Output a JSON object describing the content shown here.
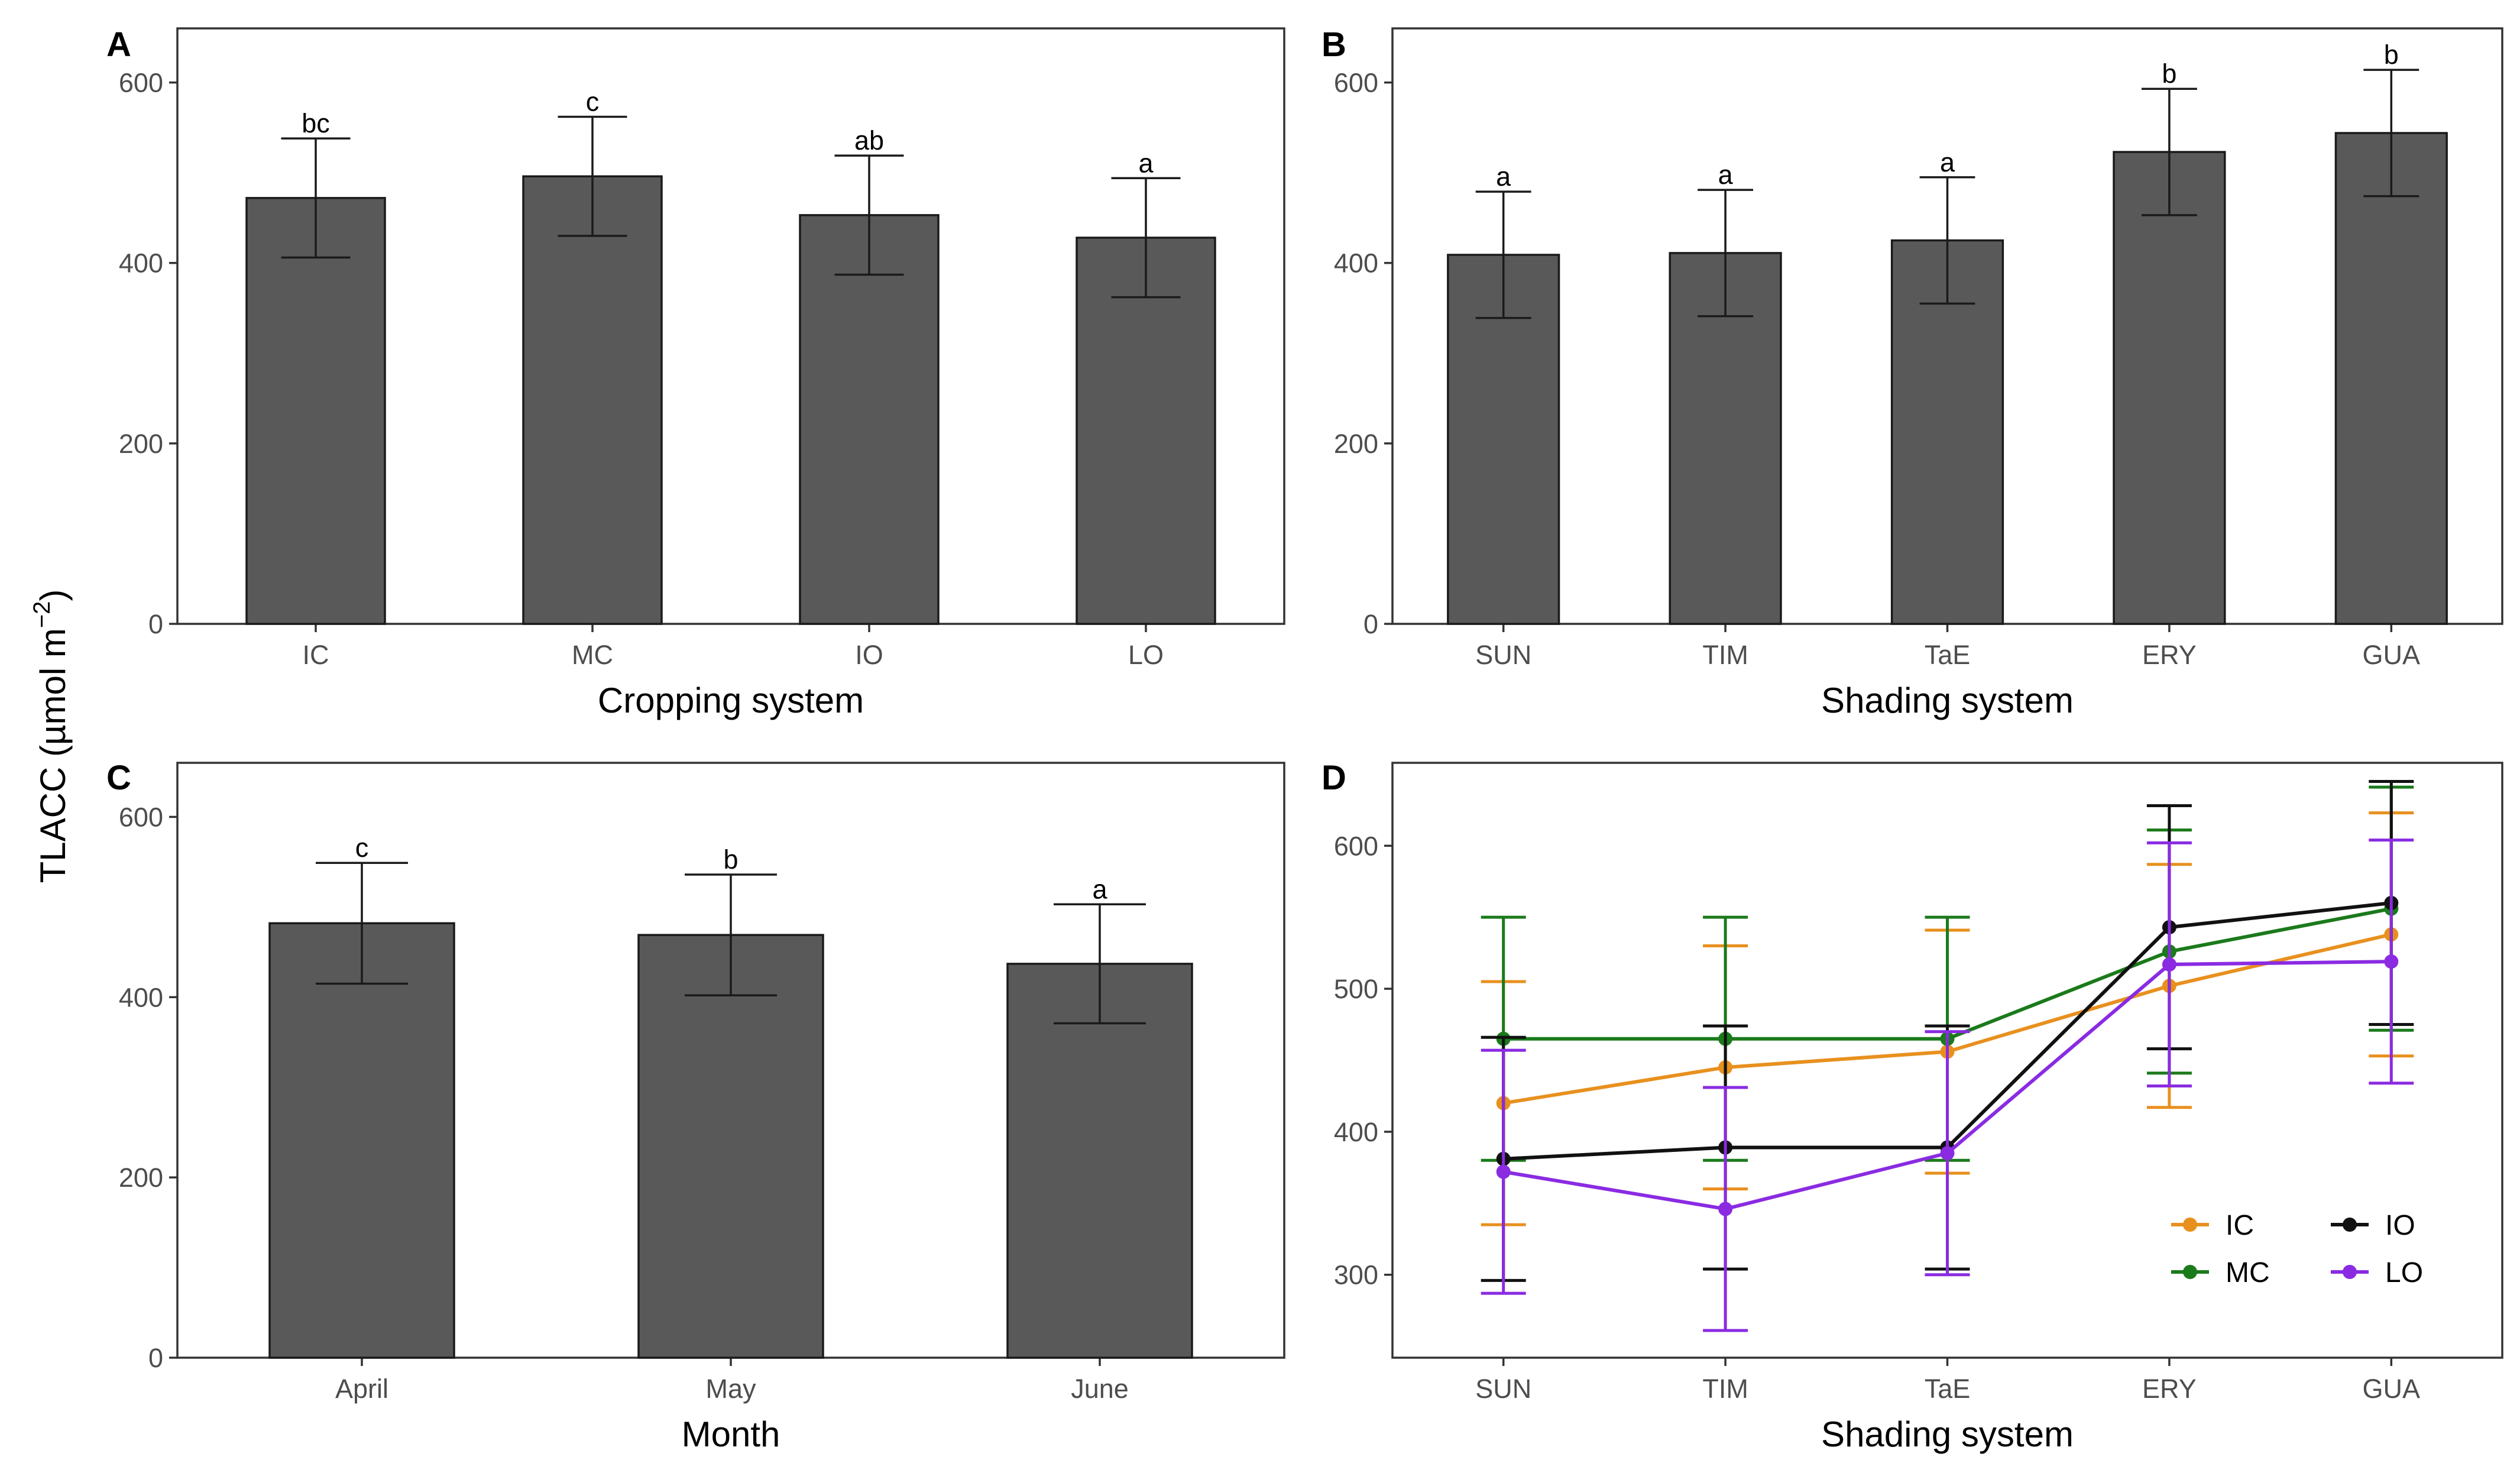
{
  "y_axis_title": "TLACC (µmol m",
  "y_axis_title_sup": "−2",
  "y_axis_title_end": ")",
  "chart_data": [
    {
      "panel": "A",
      "type": "bar",
      "xlabel": "Cropping system",
      "ylabel": "TLACC (µmol m−2)",
      "categories": [
        "IC",
        "MC",
        "IO",
        "LO"
      ],
      "values": [
        472,
        496,
        453,
        428
      ],
      "errors": [
        66,
        66,
        66,
        66
      ],
      "letters": [
        "bc",
        "c",
        "ab",
        "a"
      ],
      "ylim": [
        0,
        660
      ],
      "yticks": [
        0,
        200,
        400,
        600
      ]
    },
    {
      "panel": "B",
      "type": "bar",
      "xlabel": "Shading system",
      "ylabel": "",
      "categories": [
        "SUN",
        "TIM",
        "TaE",
        "ERY",
        "GUA"
      ],
      "values": [
        409,
        411,
        425,
        523,
        544
      ],
      "errors": [
        70,
        70,
        70,
        70,
        70
      ],
      "letters": [
        "a",
        "a",
        "a",
        "b",
        "b"
      ],
      "ylim": [
        0,
        660
      ],
      "yticks": [
        0,
        200,
        400,
        600
      ]
    },
    {
      "panel": "C",
      "type": "bar",
      "xlabel": "Month",
      "ylabel": "",
      "categories": [
        "April",
        "May",
        "June"
      ],
      "values": [
        482,
        469,
        437
      ],
      "errors": [
        67,
        67,
        66
      ],
      "letters": [
        "c",
        "b",
        "a"
      ],
      "ylim": [
        0,
        660
      ],
      "yticks": [
        0,
        200,
        400,
        600
      ]
    },
    {
      "panel": "D",
      "type": "line",
      "xlabel": "Shading system",
      "ylabel": "",
      "categories": [
        "SUN",
        "TIM",
        "TaE",
        "ERY",
        "GUA"
      ],
      "ylim": [
        242,
        658
      ],
      "yticks": [
        300,
        400,
        500,
        600
      ],
      "legend_position": "bottom-right",
      "series": [
        {
          "name": "IC",
          "color": "#e8901e",
          "values": [
            420,
            445,
            456,
            502,
            538
          ],
          "errors": [
            85,
            85,
            85,
            85,
            85
          ]
        },
        {
          "name": "MC",
          "color": "#1b7a1b",
          "values": [
            465,
            465,
            465,
            526,
            556
          ],
          "errors": [
            85,
            85,
            85,
            85,
            85
          ]
        },
        {
          "name": "IO",
          "color": "#111111",
          "values": [
            381,
            389,
            389,
            543,
            560
          ],
          "errors": [
            85,
            85,
            85,
            85,
            85
          ]
        },
        {
          "name": "LO",
          "color": "#8a2be2",
          "values": [
            372,
            346,
            385,
            517,
            519
          ],
          "errors": [
            85,
            85,
            85,
            85,
            85
          ]
        }
      ]
    }
  ]
}
